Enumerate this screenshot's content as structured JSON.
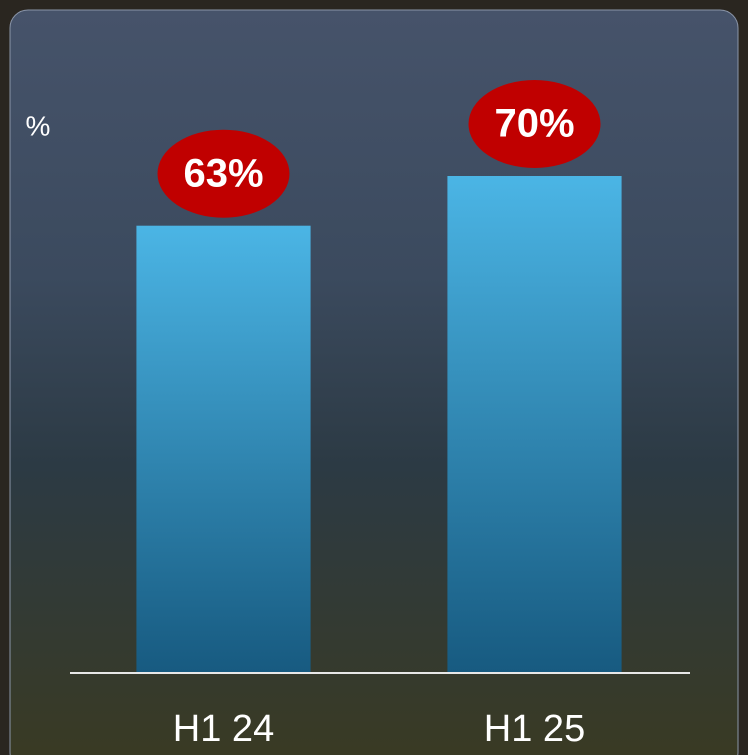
{
  "chart_data": {
    "type": "bar",
    "y_label": "%",
    "categories": [
      "H1 24",
      "H1 25"
    ],
    "values": [
      63,
      70
    ],
    "value_labels": [
      "63%",
      "70%"
    ],
    "color": "#3fa9dc",
    "label_color": "#c00000",
    "ylim": [
      0,
      85
    ]
  }
}
